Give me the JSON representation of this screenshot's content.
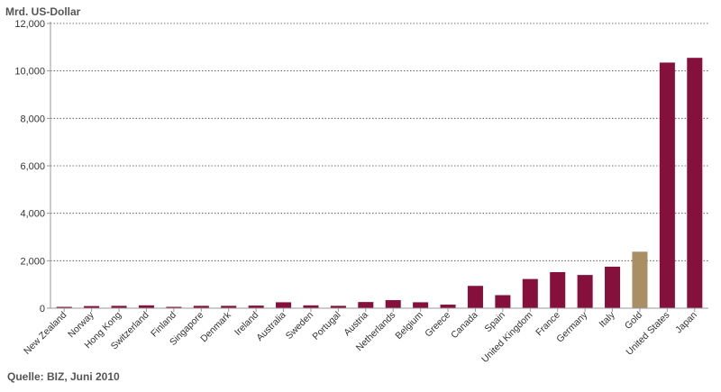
{
  "chart_data": {
    "type": "bar",
    "ylabel": "Mrd. US-Dollar",
    "ylim": [
      0,
      12000
    ],
    "yticks": [
      0,
      2000,
      4000,
      6000,
      8000,
      10000,
      12000
    ],
    "ytick_labels": [
      "0",
      "2,000",
      "4,000",
      "6,000",
      "8,000",
      "10,000",
      "12,000"
    ],
    "grid": "horizontal dotted",
    "categories": [
      "New Zealand",
      "Norway",
      "Hong Kong",
      "Switzerland",
      "Finland",
      "Singapore",
      "Denmark",
      "Ireland",
      "Australia",
      "Sweden",
      "Portugal",
      "Austria",
      "Netherlands",
      "Belgium",
      "Greece",
      "Canada",
      "Spain",
      "United Kingdom",
      "France",
      "Germany",
      "Italy",
      "Gold",
      "United States",
      "Japan"
    ],
    "values": [
      40,
      90,
      100,
      120,
      30,
      100,
      100,
      110,
      250,
      120,
      100,
      260,
      340,
      250,
      150,
      940,
      550,
      1230,
      1520,
      1400,
      1750,
      2380,
      10350,
      10550
    ],
    "highlight_category": "Gold",
    "colors": {
      "bar": "#86103c",
      "highlight": "#a89064",
      "grid": "#444444",
      "axis": "#999999"
    }
  },
  "source": "Quelle: BIZ, Juni 2010"
}
